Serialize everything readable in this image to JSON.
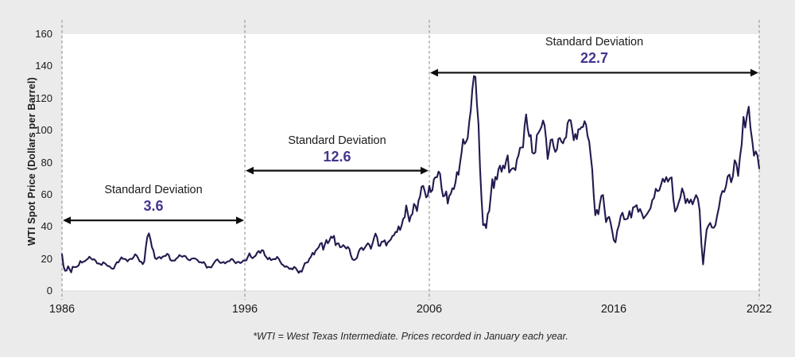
{
  "chart_data": {
    "type": "line",
    "title": "",
    "xlabel": "",
    "ylabel": "WTI Spot Price (Dollars per Barrel)",
    "ylim": [
      0,
      160
    ],
    "yticks": [
      0,
      20,
      40,
      60,
      80,
      100,
      120,
      140,
      160
    ],
    "xticks": [
      "1986",
      "1996",
      "2006",
      "2016",
      "2022"
    ],
    "grid": false,
    "legend": "none",
    "footnote": "*WTI = West Texas Intermediate. Prices recorded in January each year.",
    "annotations": [
      {
        "label": "Standard Deviation",
        "value": "3.6",
        "from_tick": "1986",
        "to_tick": "1996",
        "arrow_at_price": 44
      },
      {
        "label": "Standard Deviation",
        "value": "12.6",
        "from_tick": "1996",
        "to_tick": "2006",
        "arrow_at_price": 75
      },
      {
        "label": "Standard Deviation",
        "value": "22.7",
        "from_tick": "2006",
        "to_tick": "2022",
        "arrow_at_price": 136
      }
    ],
    "series": [
      {
        "name": "WTI Spot Price",
        "x_start_year": 1986,
        "x_step_months": 1,
        "values": [
          22.9,
          15.4,
          12.6,
          12.8,
          15.4,
          13.5,
          11.6,
          15.1,
          14.9,
          14.9,
          15.2,
          16.1,
          18.7,
          17.7,
          18.3,
          18.6,
          19.4,
          20.1,
          21.4,
          20.3,
          19.5,
          19.8,
          18.9,
          17.2,
          17.2,
          16.8,
          16.2,
          17.9,
          17.4,
          16.5,
          15.5,
          15.5,
          14.5,
          13.8,
          14.0,
          16.3,
          18.0,
          17.8,
          19.4,
          21.0,
          20.0,
          20.0,
          19.6,
          18.5,
          19.6,
          20.1,
          19.9,
          21.1,
          22.9,
          22.1,
          20.4,
          18.4,
          18.2,
          16.7,
          18.4,
          27.2,
          33.7,
          35.9,
          32.3,
          27.3,
          25.2,
          20.5,
          19.9,
          20.8,
          21.2,
          20.2,
          21.4,
          21.7,
          21.9,
          23.2,
          22.5,
          19.5,
          18.8,
          19.0,
          18.9,
          20.2,
          20.9,
          22.4,
          21.8,
          21.3,
          21.9,
          21.7,
          20.3,
          19.4,
          19.1,
          20.1,
          20.3,
          20.3,
          19.9,
          19.1,
          17.9,
          18.0,
          17.5,
          18.1,
          16.7,
          14.5,
          15.0,
          14.8,
          14.7,
          16.4,
          17.9,
          19.1,
          19.7,
          18.4,
          17.5,
          17.7,
          18.1,
          17.2,
          18.0,
          18.5,
          18.6,
          19.9,
          19.7,
          18.4,
          17.3,
          18.0,
          18.2,
          17.4,
          18.0,
          19.0,
          18.9,
          19.1,
          21.4,
          23.5,
          21.2,
          20.4,
          21.3,
          22.0,
          24.0,
          24.9,
          23.7,
          25.4,
          25.2,
          22.2,
          21.0,
          19.7,
          20.8,
          19.2,
          19.7,
          19.9,
          19.8,
          21.3,
          20.2,
          18.3,
          16.7,
          16.1,
          15.0,
          15.4,
          14.9,
          13.7,
          14.1,
          13.4,
          15.0,
          14.4,
          13.0,
          11.3,
          12.5,
          12.0,
          14.7,
          17.3,
          17.7,
          17.9,
          20.1,
          21.3,
          23.8,
          22.7,
          25.0,
          26.1,
          27.2,
          29.4,
          29.9,
          25.7,
          28.8,
          31.8,
          29.7,
          31.3,
          33.9,
          33.1,
          34.4,
          28.5,
          29.6,
          29.6,
          27.2,
          27.5,
          28.6,
          27.6,
          26.4,
          27.5,
          26.2,
          22.2,
          19.7,
          19.3,
          19.7,
          20.7,
          24.4,
          26.3,
          27.0,
          25.5,
          26.9,
          28.4,
          29.7,
          28.9,
          26.3,
          29.4,
          33.0,
          35.8,
          33.5,
          28.2,
          28.1,
          30.7,
          30.8,
          31.6,
          28.3,
          30.3,
          31.1,
          32.2,
          34.3,
          34.7,
          36.8,
          36.7,
          40.3,
          38.0,
          40.8,
          44.9,
          46.0,
          53.3,
          48.5,
          43.3,
          46.8,
          48.0,
          54.3,
          53.0,
          49.8,
          56.3,
          59.0,
          65.0,
          65.5,
          62.3,
          58.3,
          59.4,
          65.5,
          61.6,
          62.9,
          69.7,
          70.9,
          70.9,
          74.4,
          73.1,
          63.9,
          58.9,
          59.4,
          62.0,
          54.5,
          59.3,
          60.6,
          64.0,
          63.5,
          67.5,
          74.1,
          72.4,
          79.9,
          86.2,
          94.6,
          91.7,
          93.0,
          95.4,
          105.6,
          112.6,
          125.4,
          133.9,
          133.4,
          116.7,
          103.9,
          76.7,
          57.4,
          41.0,
          41.7,
          39.2,
          48.0,
          49.8,
          59.2,
          69.7,
          64.1,
          71.1,
          69.5,
          75.8,
          78.1,
          74.3,
          78.2,
          76.4,
          81.2,
          84.5,
          73.8,
          75.4,
          76.4,
          76.6,
          75.3,
          81.9,
          84.3,
          89.2,
          89.4,
          89.5,
          102.9,
          110.0,
          101.3,
          96.3,
          97.2,
          86.3,
          85.6,
          86.4,
          97.2,
          98.6,
          100.3,
          102.3,
          106.2,
          103.3,
          94.7,
          82.3,
          87.9,
          94.1,
          94.5,
          89.5,
          86.7,
          88.2,
          94.8,
          95.3,
          93.0,
          92.0,
          94.8,
          95.8,
          104.7,
          106.6,
          106.3,
          100.5,
          93.9,
          97.9,
          94.6,
          100.8,
          100.8,
          102.1,
          102.2,
          105.8,
          103.6,
          96.5,
          93.2,
          84.4,
          75.8,
          59.3,
          47.2,
          50.6,
          47.8,
          54.5,
          59.3,
          59.8,
          51.2,
          42.9,
          45.5,
          46.2,
          42.4,
          37.2,
          31.7,
          30.3,
          37.6,
          41.0,
          46.7,
          48.8,
          44.7,
          44.7,
          45.2,
          49.8,
          45.7,
          52.0,
          52.5,
          53.5,
          49.3,
          51.1,
          48.5,
          45.2,
          46.6,
          48.0,
          49.8,
          51.6,
          56.6,
          57.9,
          63.7,
          62.2,
          62.7,
          66.3,
          70.0,
          67.9,
          71.0,
          68.1,
          70.2,
          70.8,
          57.0,
          49.5,
          51.4,
          55.0,
          58.2,
          63.9,
          60.8,
          54.7,
          57.4,
          54.8,
          57.0,
          54.0,
          57.1,
          59.8,
          57.5,
          50.5,
          29.9,
          16.6,
          28.6,
          38.3,
          40.7,
          42.4,
          39.6,
          39.4,
          41.0,
          47.0,
          52.0,
          59.0,
          62.3,
          61.7,
          65.2,
          71.4,
          72.5,
          67.7,
          71.6,
          81.5,
          79.2,
          71.7,
          83.2,
          91.6,
          108.5,
          101.8,
          109.5,
          114.8,
          101.6,
          93.7,
          84.3,
          87.0,
          84.4,
          76.4
        ]
      }
    ]
  },
  "colors": {
    "page_bg": "#ebebeb",
    "plot_bg": "#ffffff",
    "line": "#221b4f",
    "dashed_line": "#999999",
    "annotation_value": "#43368e",
    "annotation_label": "#1a1a1a",
    "arrow": "#0d0d0d",
    "plot_bottom_border": "#d8d8d8"
  }
}
